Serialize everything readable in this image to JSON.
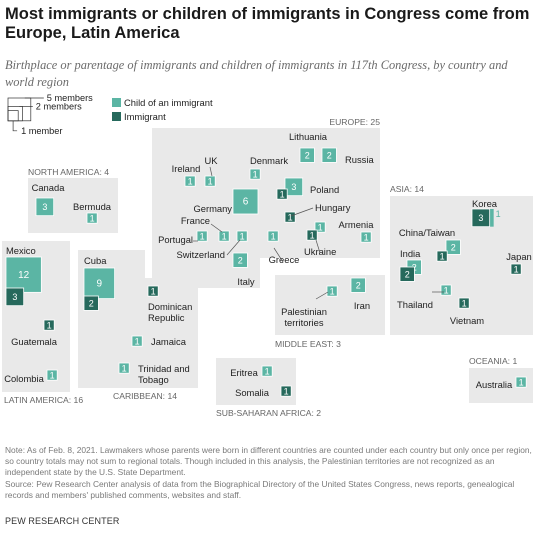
{
  "header": {
    "title": "Most immigrants or children of immigrants in Congress come from Europe, Latin America",
    "subtitle": "Birthplace or parentage of immigrants and children of immigrants in 117th Congress, by country and world region"
  },
  "legend": {
    "size_5": "5 members",
    "size_2": "2 members",
    "size_1": "1 member",
    "child": "Child of an immigrant",
    "immigrant": "Immigrant"
  },
  "colors": {
    "child": "#5bb5a4",
    "immigrant": "#26695c",
    "region_box": "#e9e9e9",
    "region_label": "#666666"
  },
  "chart_data": {
    "type": "proportional-square map",
    "series": [
      {
        "name": "Child of an immigrant",
        "color": "#5bb5a4"
      },
      {
        "name": "Immigrant",
        "color": "#26695c"
      }
    ],
    "regions": [
      {
        "name": "NORTH AMERICA",
        "total": 4,
        "countries": [
          {
            "name": "Canada",
            "child": 3,
            "immigrant": 0
          },
          {
            "name": "Bermuda",
            "child": 1,
            "immigrant": 0
          }
        ]
      },
      {
        "name": "LATIN AMERICA",
        "total": 16,
        "countries": [
          {
            "name": "Mexico",
            "child": 12,
            "immigrant": 3
          },
          {
            "name": "Guatemala",
            "child": 0,
            "immigrant": 1
          },
          {
            "name": "Colombia",
            "child": 1,
            "immigrant": 0
          }
        ]
      },
      {
        "name": "CARIBBEAN",
        "total": 14,
        "countries": [
          {
            "name": "Cuba",
            "child": 9,
            "immigrant": 2
          },
          {
            "name": "Dominican Republic",
            "child": 0,
            "immigrant": 1
          },
          {
            "name": "Jamaica",
            "child": 1,
            "immigrant": 0
          },
          {
            "name": "Trinidad and Tobago",
            "child": 1,
            "immigrant": 0
          }
        ]
      },
      {
        "name": "EUROPE",
        "total": 25,
        "countries": [
          {
            "name": "Ireland",
            "child": 1,
            "immigrant": 0
          },
          {
            "name": "UK",
            "child": 1,
            "immigrant": 0
          },
          {
            "name": "Denmark",
            "child": 1,
            "immigrant": 0
          },
          {
            "name": "Lithuania",
            "child": 2,
            "immigrant": 0
          },
          {
            "name": "Russia",
            "child": 2,
            "immigrant": 0
          },
          {
            "name": "Germany",
            "child": 6,
            "immigrant": 0
          },
          {
            "name": "Poland",
            "child": 3,
            "immigrant": 1
          },
          {
            "name": "Hungary",
            "child": 0,
            "immigrant": 1
          },
          {
            "name": "France",
            "child": 1,
            "immigrant": 0
          },
          {
            "name": "Portugal",
            "child": 1,
            "immigrant": 0
          },
          {
            "name": "Switzerland",
            "child": 1,
            "immigrant": 0
          },
          {
            "name": "Italy",
            "child": 2,
            "immigrant": 0
          },
          {
            "name": "Greece",
            "child": 1,
            "immigrant": 0
          },
          {
            "name": "Ukraine",
            "child": 1,
            "immigrant": 1
          },
          {
            "name": "Armenia",
            "child": 1,
            "immigrant": 0
          }
        ]
      },
      {
        "name": "MIDDLE EAST",
        "total": 3,
        "countries": [
          {
            "name": "Palestinian territories",
            "child": 1,
            "immigrant": 0
          },
          {
            "name": "Iran",
            "child": 2,
            "immigrant": 0
          }
        ]
      },
      {
        "name": "ASIA",
        "total": 14,
        "countries": [
          {
            "name": "Korea",
            "child": 1,
            "immigrant": 3
          },
          {
            "name": "China/Taiwan",
            "child": 2,
            "immigrant": 1
          },
          {
            "name": "India",
            "child": 2,
            "immigrant": 2
          },
          {
            "name": "Japan",
            "child": 0,
            "immigrant": 1
          },
          {
            "name": "Thailand",
            "child": 1,
            "immigrant": 0
          },
          {
            "name": "Vietnam",
            "child": 0,
            "immigrant": 1
          }
        ]
      },
      {
        "name": "SUB-SAHARAN AFRICA",
        "total": 2,
        "countries": [
          {
            "name": "Eritrea",
            "child": 1,
            "immigrant": 0
          },
          {
            "name": "Somalia",
            "child": 0,
            "immigrant": 1
          }
        ]
      },
      {
        "name": "OCEANIA",
        "total": 1,
        "countries": [
          {
            "name": "Australia",
            "child": 1,
            "immigrant": 0
          }
        ]
      }
    ]
  },
  "notes": {
    "note": "Note: As of Feb. 8, 2021. Lawmakers whose parents were born in different countries are counted under each country but only once per region, so country totals may not sum to regional totals. Though included in this analysis, the Palestinian territories are not recognized as an independent state by the U.S. State Department.",
    "source": "Source: Pew Research Center analysis of data from the Biographical Directory of the United States Congress, news reports, genealogical records and members' published comments, websites and staff.",
    "credit": "PEW RESEARCH CENTER"
  }
}
